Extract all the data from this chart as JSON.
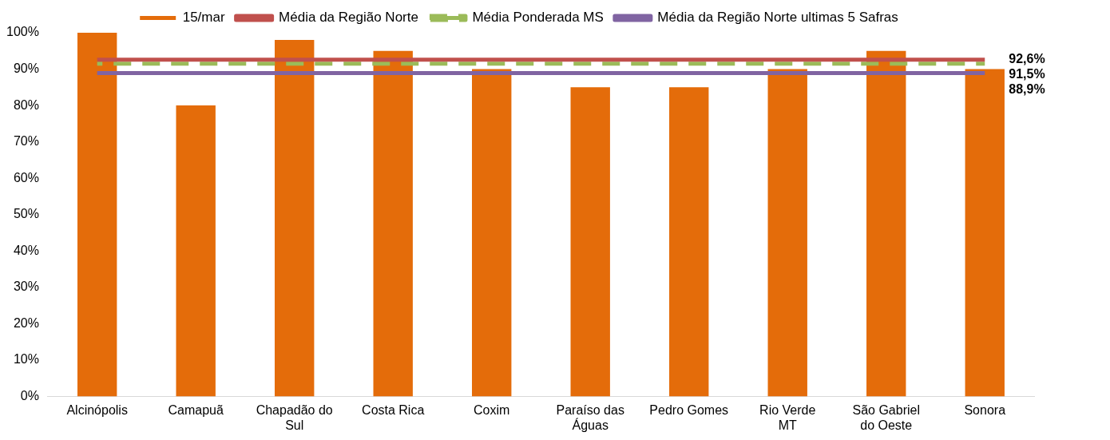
{
  "chart_data": {
    "type": "bar",
    "categories": [
      "Alcinópolis",
      "Camapuã",
      "Chapadão do Sul",
      "Costa Rica",
      "Coxim",
      "Paraíso das Águas",
      "Pedro Gomes",
      "Rio Verde MT",
      "São Gabriel do Oeste",
      "Sonora"
    ],
    "series": [
      {
        "name": "15/mar",
        "color": "#e46c0a",
        "values": [
          100,
          80,
          98,
          95,
          90,
          85,
          85,
          90,
          95,
          90
        ]
      },
      {
        "name": "Média da Região Norte",
        "type": "line",
        "color": "#c0504d",
        "line_style": "solid",
        "values": [
          92.6,
          92.6,
          92.6,
          92.6,
          92.6,
          92.6,
          92.6,
          92.6,
          92.6,
          92.6
        ],
        "value_labels": [
          null,
          null,
          null,
          null,
          null,
          null,
          null,
          null,
          null,
          "92,6%"
        ]
      },
      {
        "name": "Média Ponderada MS",
        "type": "line",
        "color": "#9bbb59",
        "line_style": "dashed",
        "values": [
          91.5,
          91.5,
          91.5,
          91.5,
          91.5,
          91.5,
          91.5,
          91.5,
          91.5,
          91.5
        ],
        "value_labels": [
          null,
          null,
          null,
          null,
          null,
          null,
          null,
          null,
          null,
          "91,5%"
        ]
      },
      {
        "name": "Média da Região Norte ultimas 5 Safras",
        "type": "line",
        "color": "#8064a2",
        "line_style": "solid",
        "values": [
          88.9,
          88.9,
          88.9,
          88.9,
          88.9,
          88.9,
          88.9,
          88.9,
          88.9,
          88.9
        ],
        "value_labels": [
          null,
          null,
          null,
          null,
          null,
          null,
          null,
          null,
          null,
          "88,9%"
        ]
      }
    ],
    "ylim": [
      0,
      100
    ],
    "yticks": [
      {
        "value": 0,
        "label": "0%"
      },
      {
        "value": 10,
        "label": "10%"
      },
      {
        "value": 20,
        "label": "20%"
      },
      {
        "value": 30,
        "label": "30%"
      },
      {
        "value": 40,
        "label": "40%"
      },
      {
        "value": 50,
        "label": "50%"
      },
      {
        "value": 60,
        "label": "60%"
      },
      {
        "value": 70,
        "label": "70%"
      },
      {
        "value": 80,
        "label": "80%"
      },
      {
        "value": 90,
        "label": "90%"
      },
      {
        "value": 100,
        "label": "100%"
      }
    ],
    "grid": false,
    "legend": "top",
    "marker": "none"
  }
}
